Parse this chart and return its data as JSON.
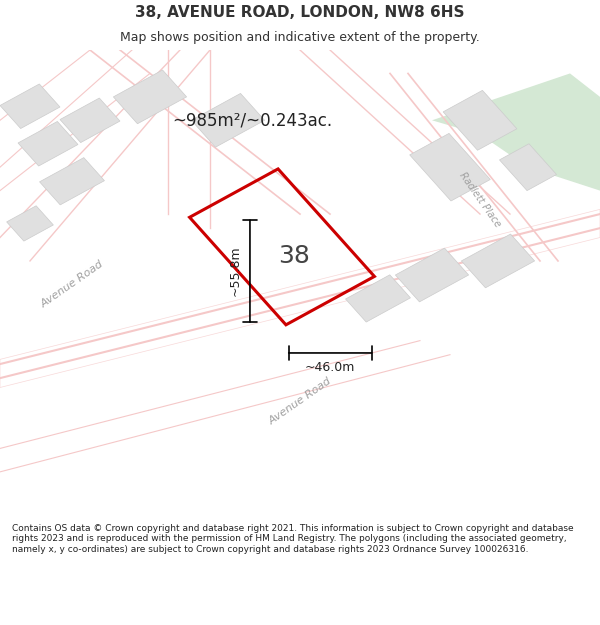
{
  "title": "38, AVENUE ROAD, LONDON, NW8 6HS",
  "subtitle": "Map shows position and indicative extent of the property.",
  "area_label": "~985m²/~0.243ac.",
  "property_number": "38",
  "width_label": "~46.0m",
  "height_label": "~55.8m",
  "footer": "Contains OS data © Crown copyright and database right 2021. This information is subject to Crown copyright and database rights 2023 and is reproduced with the permission of HM Land Registry. The polygons (including the associated geometry, namely x, y co-ordinates) are subject to Crown copyright and database rights 2023 Ordnance Survey 100026316.",
  "bg_color": "#f5f5f0",
  "map_bg": "#f2f2ee",
  "road_color": "#f5c8c8",
  "building_color": "#e0e0e0",
  "green_color": "#d4e8d4",
  "property_outline_color": "#cc0000",
  "road_label_color": "#a0a0a0",
  "title_color": "#333333",
  "footer_bg": "#ffffff"
}
